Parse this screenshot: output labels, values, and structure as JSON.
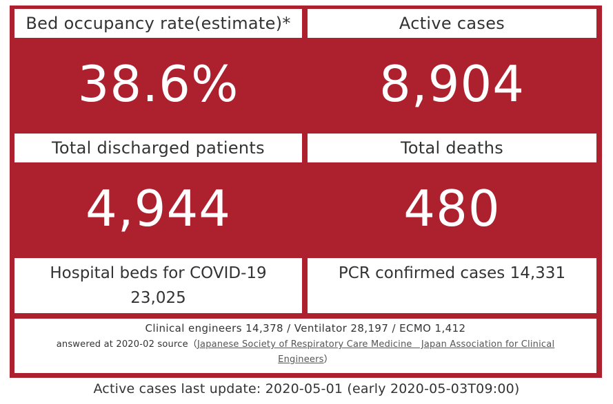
{
  "theme": {
    "accent": "#ad202e",
    "panel": "#ffffff",
    "text": "#333333"
  },
  "tiles": {
    "bed_occupancy": {
      "label": "Bed occupancy rate(estimate)*",
      "value": "38.6%"
    },
    "active_cases": {
      "label": "Active cases",
      "value": "8,904"
    },
    "discharged": {
      "label": "Total discharged patients",
      "value": "4,944"
    },
    "deaths": {
      "label": "Total deaths",
      "value": "480"
    }
  },
  "info": {
    "hospital_beds_label": "Hospital beds for COVID-19",
    "hospital_beds_value": "23,025",
    "pcr_confirmed": "PCR confirmed cases 14,331"
  },
  "footer": {
    "equipment": "Clinical engineers 14,378 / Ventilator 28,197 / ECMO 1,412",
    "answered_prefix": "answered at 2020-02 source（",
    "source_link": "Japanese Society of Respiratory Care Medicine　Japan Association for Clinical Engineers",
    "answered_suffix": "）"
  },
  "update": {
    "text": "Active cases last update: 2020-05-01 (early 2020-05-03T09:00)"
  }
}
